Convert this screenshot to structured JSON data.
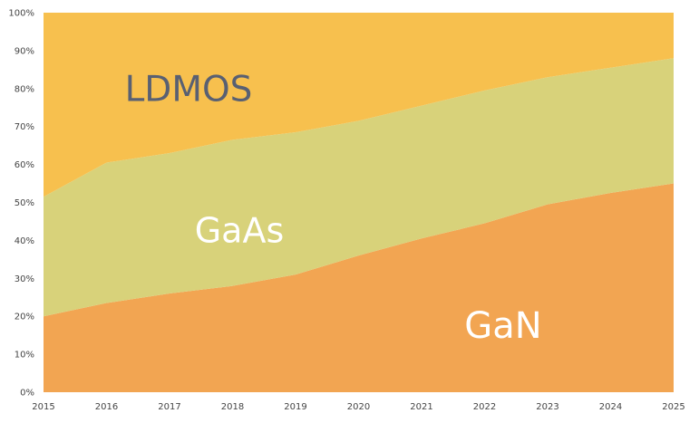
{
  "chart_data": {
    "type": "area",
    "stacked": true,
    "normalized": true,
    "title": "",
    "xlabel": "",
    "ylabel": "",
    "ylim": [
      0,
      100
    ],
    "y_ticks": [
      "0%",
      "10%",
      "20%",
      "30%",
      "40%",
      "50%",
      "60%",
      "70%",
      "80%",
      "90%",
      "100%"
    ],
    "x": [
      "2015",
      "2016",
      "2017",
      "2018",
      "2019",
      "2020",
      "2021",
      "2022",
      "2023",
      "2024",
      "2025"
    ],
    "series": [
      {
        "name": "GaN",
        "color": "#f2a552",
        "label_color": "#ffffff",
        "values": [
          20,
          23.5,
          26,
          28,
          31,
          36,
          40.5,
          44.5,
          49.5,
          52.5,
          55
        ]
      },
      {
        "name": "GaAs",
        "color": "#d8d27a",
        "label_color": "#ffffff",
        "values": [
          31.5,
          37,
          37,
          38.5,
          37.5,
          35.5,
          35,
          35,
          33.5,
          33,
          33
        ]
      },
      {
        "name": "LDMOS",
        "color": "#f7c04e",
        "label_color": "#596072",
        "values": [
          48.5,
          39.5,
          37,
          33.5,
          31.5,
          28.5,
          24.5,
          20.5,
          17,
          14.5,
          12
        ]
      }
    ],
    "grid": false,
    "legend": "none"
  }
}
